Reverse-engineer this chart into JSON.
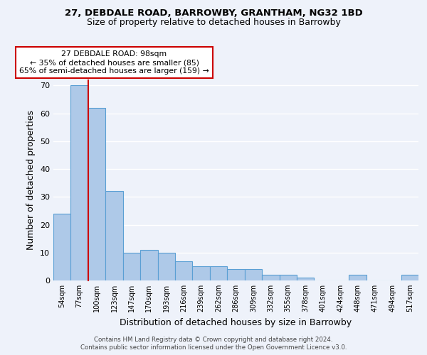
{
  "title1": "27, DEBDALE ROAD, BARROWBY, GRANTHAM, NG32 1BD",
  "title2": "Size of property relative to detached houses in Barrowby",
  "xlabel": "Distribution of detached houses by size in Barrowby",
  "ylabel": "Number of detached properties",
  "footnote": "Contains HM Land Registry data © Crown copyright and database right 2024.\nContains public sector information licensed under the Open Government Licence v3.0.",
  "categories": [
    "54sqm",
    "77sqm",
    "100sqm",
    "123sqm",
    "147sqm",
    "170sqm",
    "193sqm",
    "216sqm",
    "239sqm",
    "262sqm",
    "286sqm",
    "309sqm",
    "332sqm",
    "355sqm",
    "378sqm",
    "401sqm",
    "424sqm",
    "448sqm",
    "471sqm",
    "494sqm",
    "517sqm"
  ],
  "values": [
    24,
    70,
    62,
    32,
    10,
    11,
    10,
    7,
    5,
    5,
    4,
    4,
    2,
    2,
    1,
    0,
    0,
    2,
    0,
    0,
    2
  ],
  "bar_color": "#aec9e8",
  "bar_edge_color": "#5a9fd4",
  "annotation_line_color": "#cc0000",
  "annotation_box_text": "27 DEBDALE ROAD: 98sqm\n← 35% of detached houses are smaller (85)\n65% of semi-detached houses are larger (159) →",
  "annotation_box_color": "#cc0000",
  "ylim": [
    0,
    72
  ],
  "yticks": [
    0,
    10,
    20,
    30,
    40,
    50,
    60,
    70
  ],
  "background_color": "#eef2fa",
  "plot_bg_color": "#eef2fa",
  "grid_color": "#ffffff"
}
